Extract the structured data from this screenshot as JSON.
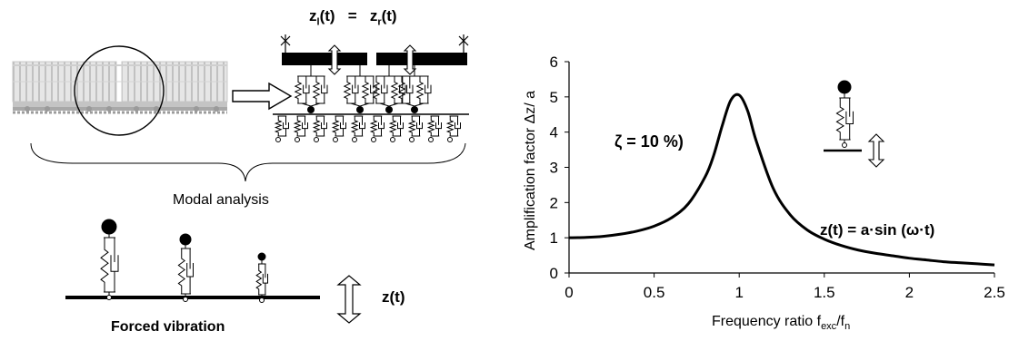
{
  "left_diagram": {
    "equation": {
      "zl": "z",
      "zl_sub": "l",
      "t1": "(t)",
      "eq": "=",
      "zr": "z",
      "zr_sub": "r",
      "t2": "(t)"
    },
    "modal_label": "Modal analysis",
    "forced_label": "Forced vibration",
    "excitation_label": "z(t)"
  },
  "chart_data": {
    "type": "line",
    "xlabel_main": "Frequency ratio f",
    "xlabel_sub1": "exc",
    "xlabel_mid": "/f",
    "xlabel_sub2": "n",
    "ylabel": "Amplification factor Δz/ a",
    "xlim": [
      0,
      2.5
    ],
    "ylim": [
      0,
      6
    ],
    "xticks": [
      "0",
      "0.5",
      "1",
      "1.5",
      "2",
      "2.5"
    ],
    "yticks": [
      "0",
      "1",
      "2",
      "3",
      "4",
      "5",
      "6"
    ],
    "grid": false,
    "damping_label": "ζ = 10 %)",
    "equation_label": "z(t) = a·sin (ω·t)",
    "series": [
      {
        "x": [
          0,
          0.1,
          0.2,
          0.3,
          0.4,
          0.5,
          0.6,
          0.7,
          0.8,
          0.85,
          0.9,
          0.95,
          1.0,
          1.05,
          1.1,
          1.2,
          1.3,
          1.4,
          1.5,
          1.6,
          1.7,
          1.8,
          1.9,
          2.0,
          2.1,
          2.2,
          2.3,
          2.4,
          2.5
        ],
        "y": [
          1.0,
          1.01,
          1.04,
          1.1,
          1.19,
          1.33,
          1.56,
          1.96,
          2.73,
          3.34,
          4.18,
          4.9,
          5.05,
          4.6,
          3.75,
          2.4,
          1.65,
          1.22,
          0.96,
          0.78,
          0.65,
          0.56,
          0.49,
          0.42,
          0.37,
          0.32,
          0.29,
          0.26,
          0.23
        ]
      }
    ]
  }
}
